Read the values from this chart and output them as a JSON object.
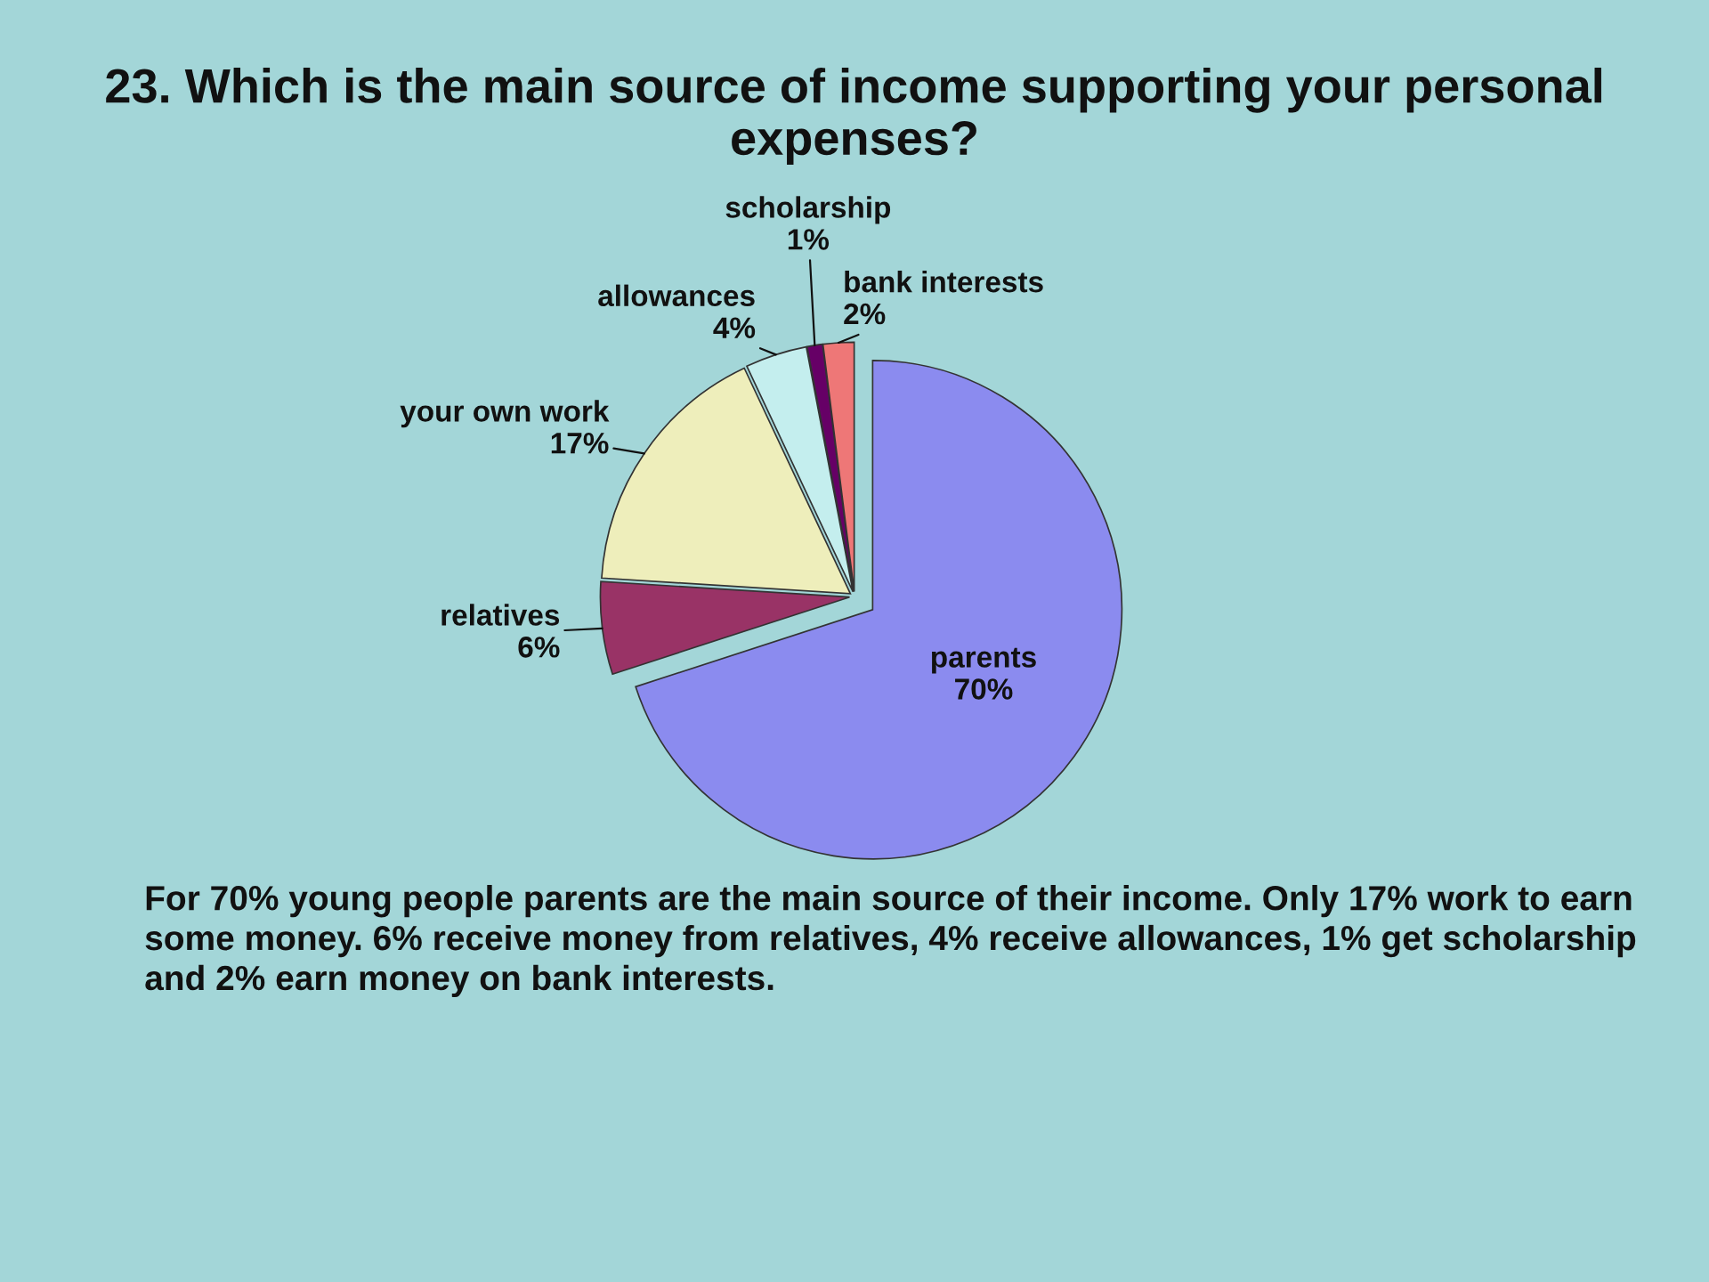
{
  "chart_data": {
    "type": "pie",
    "title": "23. Which is the main source of income supporting your personal expenses?",
    "categories": [
      "parents",
      "relatives",
      "your own work",
      "allowances",
      "scholarship",
      "bank interests"
    ],
    "values": [
      70,
      6,
      17,
      4,
      1,
      2
    ],
    "colors": [
      "#8b8bef",
      "#993366",
      "#eeeebb",
      "#c4eeee",
      "#660066",
      "#ee7777"
    ],
    "value_labels": [
      "70%",
      "6%",
      "17%",
      "4%",
      "1%",
      "2%"
    ],
    "annotations": [
      "For 70% young people parents are the main source of their income. Only 17% work to earn some money. 6% receive money from relatives, 4% receive allowances, 1% get scholarship and 2% earn money on bank interests."
    ]
  }
}
